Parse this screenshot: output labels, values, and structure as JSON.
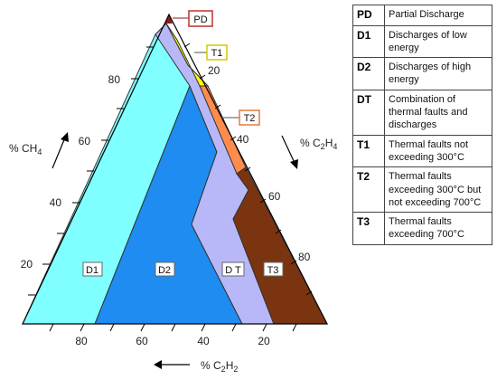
{
  "axes": {
    "left_label": "% CH",
    "left_label_sub": "4",
    "right_label": "% C",
    "right_label_sub1": "2",
    "right_label_tail": "H",
    "right_label_sub2": "4",
    "bottom_label": "% C",
    "bottom_label_sub1": "2",
    "bottom_label_tail": "H",
    "bottom_label_sub2": "2",
    "left_ticks": [
      "80",
      "60",
      "40",
      "20"
    ],
    "right_ticks": [
      "20",
      "40",
      "60",
      "80"
    ],
    "bottom_ticks": [
      "80",
      "60",
      "40",
      "20"
    ]
  },
  "zones": {
    "PD": "PD",
    "T1": "T1",
    "T2": "T2",
    "D1": "D1",
    "D2": "D2",
    "DT": "D T",
    "T3": "T3"
  },
  "colors": {
    "D1": "#7FFFFF",
    "D2": "#1E8CF0",
    "DT": "#B8B8F8",
    "T1": "#FFFF00",
    "T2": "#FF8C4C",
    "T3": "#7A3410",
    "PD": "#8B1A1A"
  },
  "legend": [
    {
      "code": "PD",
      "desc": "Partial Discharge"
    },
    {
      "code": "D1",
      "desc": "Discharges of low energy"
    },
    {
      "code": "D2",
      "desc": "Discharges of high energy"
    },
    {
      "code": "DT",
      "desc": "Combination of thermal faults and discharges"
    },
    {
      "code": "T1",
      "desc": "Thermal faults not exceeding 300°C"
    },
    {
      "code": "T2",
      "desc": "Thermal faults exceeding 300°C but not exceeding 700°C"
    },
    {
      "code": "T3",
      "desc": "Thermal faults exceeding 700°C"
    }
  ]
}
